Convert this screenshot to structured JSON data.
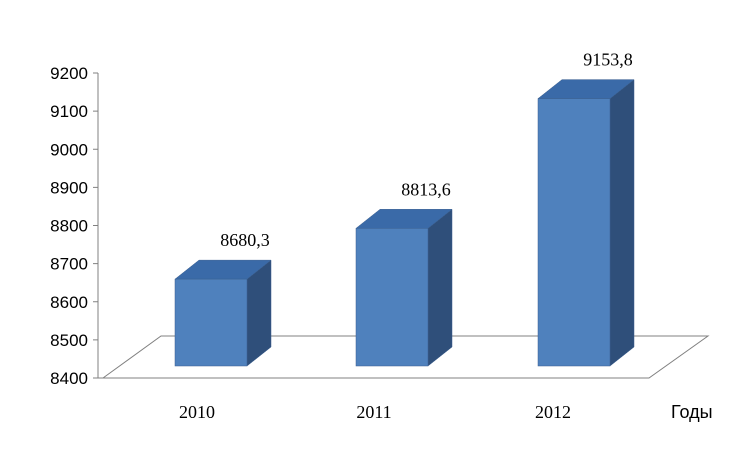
{
  "chart_data": {
    "type": "bar",
    "style": "3d-column",
    "categories": [
      "2010",
      "2011",
      "2012"
    ],
    "series": [
      {
        "values": [
          8680.3,
          8813.6,
          9153.8
        ]
      }
    ],
    "data_labels": [
      "8680,3",
      "8813,6",
      "9153,8"
    ],
    "yticks": [
      "8400",
      "8500",
      "8600",
      "8700",
      "8800",
      "8900",
      "9000",
      "9100",
      "9200"
    ],
    "ylim": [
      8400,
      9200
    ],
    "xlabel": "Годы",
    "ylabel": "",
    "title": "",
    "grid": false,
    "legend": "none",
    "colors": {
      "bar_front": "#4f81bd",
      "bar_top": "#3a6aa8",
      "bar_side": "#2f4f7a",
      "bar_edge": "#3b5f8f",
      "axis": "#808080"
    }
  }
}
